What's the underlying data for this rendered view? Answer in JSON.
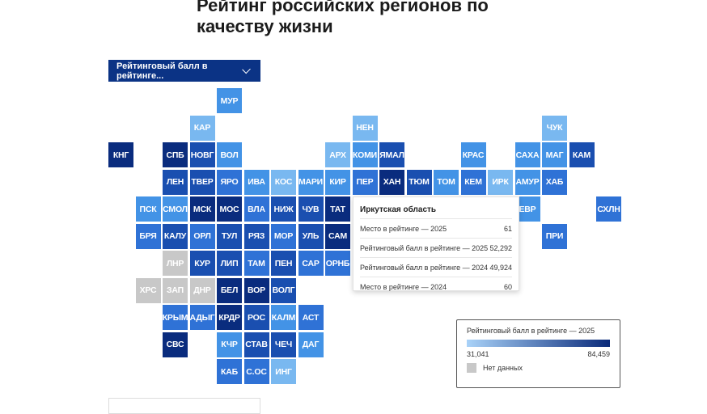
{
  "header": {
    "title": "Рейтинг российских регионов по качеству жизни"
  },
  "metric_select": {
    "selected": "Рейтинговый балл в рейтинге..."
  },
  "colors": {
    "very_dark": "#0a2c7e",
    "dark": "#1a4fb0",
    "mid": "#2f72d6",
    "light": "#4393e6",
    "pale": "#79b8f0",
    "no_data": "#c8c8c8"
  },
  "regions": [
    {
      "label": "МУР",
      "col": 4,
      "row": 0,
      "shade": "light"
    },
    {
      "label": "КАР",
      "col": 3,
      "row": 1,
      "shade": "pale"
    },
    {
      "label": "НЕН",
      "col": 9,
      "row": 1,
      "shade": "pale"
    },
    {
      "label": "ЧУК",
      "col": 16,
      "row": 1,
      "shade": "pale"
    },
    {
      "label": "КНГ",
      "col": 0,
      "row": 2,
      "shade": "very_dark"
    },
    {
      "label": "СПБ",
      "col": 2,
      "row": 2,
      "shade": "very_dark"
    },
    {
      "label": "НОВГ",
      "col": 3,
      "row": 2,
      "shade": "dark"
    },
    {
      "label": "ВОЛ",
      "col": 4,
      "row": 2,
      "shade": "light"
    },
    {
      "label": "АРХ",
      "col": 8,
      "row": 2,
      "shade": "pale"
    },
    {
      "label": "КОМИ",
      "col": 9,
      "row": 2,
      "shade": "light"
    },
    {
      "label": "ЯМАЛ",
      "col": 10,
      "row": 2,
      "shade": "dark"
    },
    {
      "label": "КРАС",
      "col": 13,
      "row": 2,
      "shade": "light"
    },
    {
      "label": "САХА",
      "col": 15,
      "row": 2,
      "shade": "light"
    },
    {
      "label": "МАГ",
      "col": 16,
      "row": 2,
      "shade": "light"
    },
    {
      "label": "КАМ",
      "col": 17,
      "row": 2,
      "shade": "dark"
    },
    {
      "label": "ЛЕН",
      "col": 2,
      "row": 3,
      "shade": "dark"
    },
    {
      "label": "ТВЕР",
      "col": 3,
      "row": 3,
      "shade": "dark"
    },
    {
      "label": "ЯРО",
      "col": 4,
      "row": 3,
      "shade": "mid"
    },
    {
      "label": "ИВА",
      "col": 5,
      "row": 3,
      "shade": "light"
    },
    {
      "label": "КОС",
      "col": 6,
      "row": 3,
      "shade": "pale"
    },
    {
      "label": "МАРИ",
      "col": 7,
      "row": 3,
      "shade": "light"
    },
    {
      "label": "КИР",
      "col": 8,
      "row": 3,
      "shade": "light"
    },
    {
      "label": "ПЕР",
      "col": 9,
      "row": 3,
      "shade": "mid"
    },
    {
      "label": "ХАН",
      "col": 10,
      "row": 3,
      "shade": "very_dark"
    },
    {
      "label": "ТЮМ",
      "col": 11,
      "row": 3,
      "shade": "dark"
    },
    {
      "label": "ТОМ",
      "col": 12,
      "row": 3,
      "shade": "light"
    },
    {
      "label": "КЕМ",
      "col": 13,
      "row": 3,
      "shade": "mid"
    },
    {
      "label": "ИРК",
      "col": 14,
      "row": 3,
      "shade": "pale"
    },
    {
      "label": "АМУР",
      "col": 15,
      "row": 3,
      "shade": "light"
    },
    {
      "label": "ХАБ",
      "col": 16,
      "row": 3,
      "shade": "mid"
    },
    {
      "label": "ПСК",
      "col": 1,
      "row": 4,
      "shade": "light"
    },
    {
      "label": "СМОЛ",
      "col": 2,
      "row": 4,
      "shade": "light"
    },
    {
      "label": "МСК",
      "col": 3,
      "row": 4,
      "shade": "very_dark"
    },
    {
      "label": "МОС",
      "col": 4,
      "row": 4,
      "shade": "very_dark"
    },
    {
      "label": "ВЛА",
      "col": 5,
      "row": 4,
      "shade": "mid"
    },
    {
      "label": "НИЖ",
      "col": 6,
      "row": 4,
      "shade": "dark"
    },
    {
      "label": "ЧУВ",
      "col": 7,
      "row": 4,
      "shade": "dark"
    },
    {
      "label": "ТАТ",
      "col": 8,
      "row": 4,
      "shade": "very_dark"
    },
    {
      "label": "ЕВР",
      "col": 15,
      "row": 4,
      "shade": "light"
    },
    {
      "label": "СХЛН",
      "col": 18,
      "row": 4,
      "shade": "mid"
    },
    {
      "label": "БРЯ",
      "col": 1,
      "row": 5,
      "shade": "mid"
    },
    {
      "label": "КАЛУ",
      "col": 2,
      "row": 5,
      "shade": "dark"
    },
    {
      "label": "ОРЛ",
      "col": 3,
      "row": 5,
      "shade": "mid"
    },
    {
      "label": "ТУЛ",
      "col": 4,
      "row": 5,
      "shade": "dark"
    },
    {
      "label": "РЯЗ",
      "col": 5,
      "row": 5,
      "shade": "dark"
    },
    {
      "label": "МОР",
      "col": 6,
      "row": 5,
      "shade": "mid"
    },
    {
      "label": "УЛЬ",
      "col": 7,
      "row": 5,
      "shade": "dark"
    },
    {
      "label": "САМ",
      "col": 8,
      "row": 5,
      "shade": "very_dark"
    },
    {
      "label": "ПРИ",
      "col": 16,
      "row": 5,
      "shade": "mid"
    },
    {
      "label": "ЛНР",
      "col": 2,
      "row": 6,
      "shade": "no_data"
    },
    {
      "label": "КУР",
      "col": 3,
      "row": 6,
      "shade": "dark"
    },
    {
      "label": "ЛИП",
      "col": 4,
      "row": 6,
      "shade": "dark"
    },
    {
      "label": "ТАМ",
      "col": 5,
      "row": 6,
      "shade": "mid"
    },
    {
      "label": "ПЕН",
      "col": 6,
      "row": 6,
      "shade": "dark"
    },
    {
      "label": "САР",
      "col": 7,
      "row": 6,
      "shade": "mid"
    },
    {
      "label": "ОРНБ",
      "col": 8,
      "row": 6,
      "shade": "mid"
    },
    {
      "label": "ХРС",
      "col": 1,
      "row": 7,
      "shade": "no_data"
    },
    {
      "label": "ЗАП",
      "col": 2,
      "row": 7,
      "shade": "no_data"
    },
    {
      "label": "ДНР",
      "col": 3,
      "row": 7,
      "shade": "no_data"
    },
    {
      "label": "БЕЛ",
      "col": 4,
      "row": 7,
      "shade": "very_dark"
    },
    {
      "label": "ВОР",
      "col": 5,
      "row": 7,
      "shade": "very_dark"
    },
    {
      "label": "ВОЛГ",
      "col": 6,
      "row": 7,
      "shade": "dark"
    },
    {
      "label": "КРЫМ",
      "col": 2,
      "row": 8,
      "shade": "mid"
    },
    {
      "label": "АДЫГ",
      "col": 3,
      "row": 8,
      "shade": "mid"
    },
    {
      "label": "КРДР",
      "col": 4,
      "row": 8,
      "shade": "very_dark"
    },
    {
      "label": "РОС",
      "col": 5,
      "row": 8,
      "shade": "dark"
    },
    {
      "label": "КАЛМ",
      "col": 6,
      "row": 8,
      "shade": "light"
    },
    {
      "label": "АСТ",
      "col": 7,
      "row": 8,
      "shade": "mid"
    },
    {
      "label": "СВС",
      "col": 2,
      "row": 9,
      "shade": "very_dark"
    },
    {
      "label": "КЧР",
      "col": 4,
      "row": 9,
      "shade": "light"
    },
    {
      "label": "СТАВ",
      "col": 5,
      "row": 9,
      "shade": "dark"
    },
    {
      "label": "ЧЕЧ",
      "col": 6,
      "row": 9,
      "shade": "dark"
    },
    {
      "label": "ДАГ",
      "col": 7,
      "row": 9,
      "shade": "light"
    },
    {
      "label": "КАБ",
      "col": 4,
      "row": 10,
      "shade": "mid"
    },
    {
      "label": "С.ОС",
      "col": 5,
      "row": 10,
      "shade": "mid"
    },
    {
      "label": "ИНГ",
      "col": 6,
      "row": 10,
      "shade": "pale"
    }
  ],
  "tooltip": {
    "region": "Иркутская область",
    "rows": [
      {
        "label": "Место в рейтинге — 2025",
        "value": "61"
      },
      {
        "label": "Рейтинговый балл в рейтинге — 2025",
        "value": "52,292"
      },
      {
        "label": "Рейтинговый балл в рейтинге — 2024",
        "value": "49,924"
      },
      {
        "label": "Место в рейтинге — 2024",
        "value": "60"
      }
    ]
  },
  "legend": {
    "title": "Рейтинговый балл в рейтинге — 2025",
    "min": "31,041",
    "max": "84,459",
    "no_data_label": "Нет данных"
  }
}
